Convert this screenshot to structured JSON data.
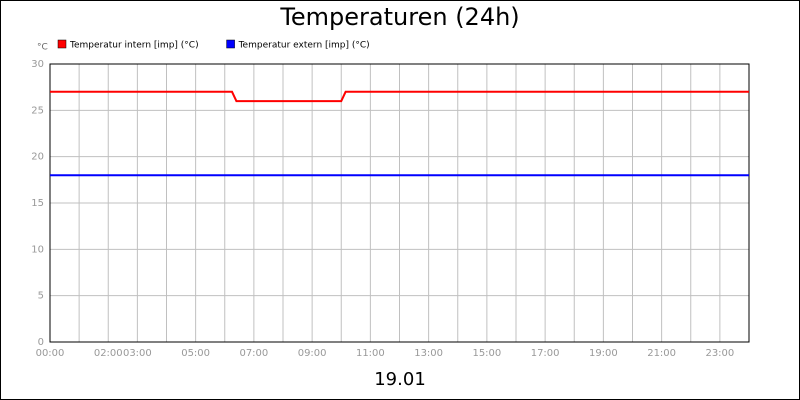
{
  "chart_data": {
    "type": "line",
    "title": "Temperaturen (24h)",
    "y_label": "°C",
    "x_label": "19.01",
    "xlim": [
      0,
      24
    ],
    "ylim": [
      0,
      30
    ],
    "yticks": [
      0,
      5,
      10,
      15,
      20,
      25,
      30
    ],
    "xticks": [
      {
        "value": 0,
        "label": "00:00"
      },
      {
        "value": 1,
        "label": null
      },
      {
        "value": 2,
        "label": "02:00"
      },
      {
        "value": 3,
        "label": "03:00"
      },
      {
        "value": 4,
        "label": null
      },
      {
        "value": 5,
        "label": "05:00"
      },
      {
        "value": 6,
        "label": null
      },
      {
        "value": 7,
        "label": "07:00"
      },
      {
        "value": 8,
        "label": null
      },
      {
        "value": 9,
        "label": "09:00"
      },
      {
        "value": 10,
        "label": null
      },
      {
        "value": 11,
        "label": "11:00"
      },
      {
        "value": 12,
        "label": null
      },
      {
        "value": 13,
        "label": "13:00"
      },
      {
        "value": 14,
        "label": null
      },
      {
        "value": 15,
        "label": "15:00"
      },
      {
        "value": 16,
        "label": null
      },
      {
        "value": 17,
        "label": "17:00"
      },
      {
        "value": 18,
        "label": null
      },
      {
        "value": 19,
        "label": "19:00"
      },
      {
        "value": 20,
        "label": null
      },
      {
        "value": 21,
        "label": "21:00"
      },
      {
        "value": 22,
        "label": null
      },
      {
        "value": 23,
        "label": "23:00"
      }
    ],
    "grid": true,
    "series": [
      {
        "name": "Temperatur intern [imp] (°C)",
        "color": "#ff0000",
        "x": [
          0,
          6.25,
          6.4,
          10.0,
          10.15,
          24
        ],
        "values": [
          27,
          27,
          26,
          26,
          27,
          27
        ]
      },
      {
        "name": "Temperatur extern [imp] (°C)",
        "color": "#0000ff",
        "x": [
          0,
          24
        ],
        "values": [
          18,
          18
        ]
      }
    ]
  }
}
